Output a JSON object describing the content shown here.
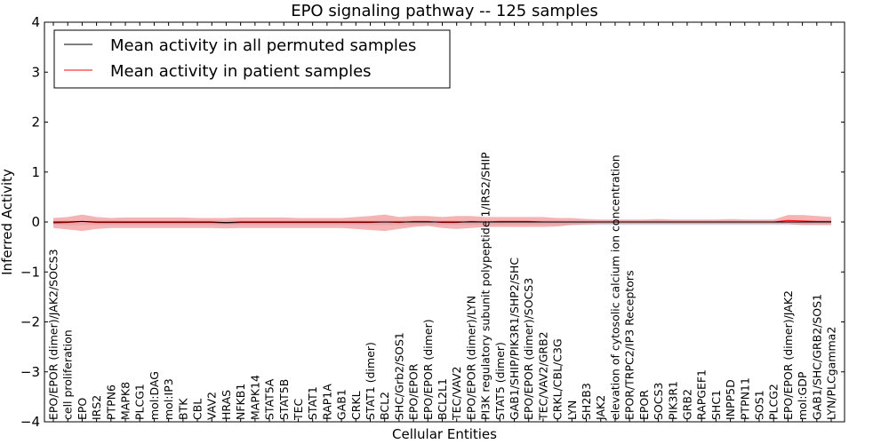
{
  "chart_data": {
    "type": "line",
    "title": "EPO signaling pathway -- 125 samples",
    "xlabel": "Cellular Entities",
    "ylabel": "Inferred Activity",
    "ylim": [
      -4,
      4
    ],
    "yticks": [
      4,
      3,
      2,
      1,
      0,
      -1,
      -2,
      -3,
      -4
    ],
    "ytick_labels": [
      "4",
      "3",
      "2",
      "1",
      "0",
      "−1",
      "−2",
      "−3",
      "−4"
    ],
    "legend_position": "top-left",
    "categories": [
      "EPO/EPOR (dimer)/JAK2/SOCS3",
      "cell proliferation",
      "EPO",
      "IRS2",
      "PTPN6",
      "MAPK8",
      "PLCG1",
      "mol:DAG",
      "mol:IP3",
      "BTK",
      "CBL",
      "VAV2",
      "HRAS",
      "NFKB1",
      "MAPK14",
      "STAT5A",
      "STAT5B",
      "TEC",
      "STAT1",
      "RAP1A",
      "GAB1",
      "CRKL",
      "STAT1 (dimer)",
      "BCL2",
      "SHC/Grb2/SOS1",
      "EPO/EPOR",
      "EPO/EPOR (dimer)",
      "BCL2L1",
      "TEC/VAV2",
      "EPO/EPOR (dimer)/LYN",
      "PI3K regulatory subunit polypeptide 1/IRS2/SHIP",
      "STAT5 (dimer)",
      "GAB1/SHIP/PIK3R1/SHP2/SHC",
      "EPO/EPOR (dimer)/SOCS3",
      "TEC/VAV2/GRB2",
      "CRKL/CBL/C3G",
      "LYN",
      "SH2B3",
      "JAK2",
      "elevation of cytosolic calcium ion concentration",
      "EPOR/TRPC2/IP3 Receptors",
      "EPOR",
      "SOCS3",
      "PIK3R1",
      "GRB2",
      "RAPGEF1",
      "SHC1",
      "INPP5D",
      "PTPN11",
      "SOS1",
      "PLCG2",
      "EPO/EPOR (dimer)/JAK2",
      "mol:GDP",
      "GAB1/SHC/GRB2/SOS1",
      "LYN/PLCgamma2"
    ],
    "series": [
      {
        "name": "Mean activity in all permuted samples",
        "color": "#000000",
        "values": [
          0,
          0,
          0.01,
          0,
          0,
          0,
          0,
          0,
          0,
          0,
          0,
          0,
          -0.01,
          0,
          0,
          0,
          0,
          0,
          0,
          0,
          0,
          0,
          0,
          0,
          0,
          0,
          0,
          0,
          0,
          0,
          0,
          0,
          0,
          0,
          0,
          0,
          0,
          0,
          0,
          0,
          0,
          0,
          0,
          0,
          0,
          0,
          0,
          0,
          0,
          0,
          0,
          0,
          0,
          0,
          0
        ],
        "band_upper": [
          0.02,
          0.03,
          0.03,
          0.03,
          0.03,
          0.03,
          0.03,
          0.03,
          0.03,
          0.03,
          0.03,
          0.03,
          0.03,
          0.03,
          0.03,
          0.03,
          0.03,
          0.03,
          0.03,
          0.03,
          0.03,
          0.03,
          0.03,
          0.03,
          0.03,
          0.03,
          0.03,
          0.03,
          0.03,
          0.03,
          0.03,
          0.03,
          0.03,
          0.03,
          0.03,
          0.03,
          0.03,
          0.03,
          0.03,
          0.03,
          0.03,
          0.03,
          0.03,
          0.03,
          0.03,
          0.03,
          0.03,
          0.03,
          0.03,
          0.03,
          0.03,
          0.03,
          0.03,
          0.03,
          0.03
        ],
        "band_lower": [
          -0.05,
          -0.07,
          -0.06,
          -0.06,
          -0.06,
          -0.06,
          -0.06,
          -0.06,
          -0.06,
          -0.06,
          -0.06,
          -0.06,
          -0.06,
          -0.06,
          -0.06,
          -0.06,
          -0.06,
          -0.06,
          -0.06,
          -0.06,
          -0.06,
          -0.06,
          -0.06,
          -0.06,
          -0.06,
          -0.06,
          -0.06,
          -0.06,
          -0.06,
          -0.06,
          -0.06,
          -0.06,
          -0.06,
          -0.06,
          -0.06,
          -0.06,
          -0.06,
          -0.06,
          -0.06,
          -0.06,
          -0.06,
          -0.06,
          -0.06,
          -0.06,
          -0.06,
          -0.06,
          -0.06,
          -0.06,
          -0.06,
          -0.06,
          -0.06,
          -0.06,
          -0.06,
          -0.06,
          -0.06
        ]
      },
      {
        "name": "Mean activity in patient samples",
        "color": "#ff0000",
        "values": [
          -0.02,
          -0.01,
          0.01,
          -0.01,
          -0.01,
          -0.01,
          -0.01,
          -0.01,
          -0.01,
          -0.01,
          -0.01,
          -0.01,
          -0.02,
          -0.01,
          -0.01,
          -0.01,
          -0.01,
          -0.01,
          -0.01,
          -0.01,
          -0.01,
          -0.01,
          -0.01,
          0.0,
          -0.01,
          0.01,
          0.01,
          -0.01,
          -0.01,
          0.01,
          0.0,
          0.01,
          0.01,
          0.01,
          0.0,
          0.0,
          0.0,
          0.0,
          0.0,
          0.0,
          0.0,
          0.0,
          0.0,
          0.0,
          0.0,
          0.0,
          0.0,
          0.0,
          0.0,
          0.0,
          0.0,
          0.03,
          0.02,
          0.01,
          0.01
        ],
        "band_upper": [
          0.08,
          0.1,
          0.15,
          0.1,
          0.08,
          0.09,
          0.09,
          0.09,
          0.09,
          0.09,
          0.08,
          0.08,
          0.08,
          0.09,
          0.09,
          0.09,
          0.09,
          0.08,
          0.08,
          0.08,
          0.08,
          0.1,
          0.12,
          0.15,
          0.1,
          0.12,
          0.12,
          0.1,
          0.12,
          0.12,
          0.1,
          0.1,
          0.1,
          0.1,
          0.1,
          0.08,
          0.08,
          0.06,
          0.05,
          0.05,
          0.05,
          0.05,
          0.06,
          0.05,
          0.05,
          0.05,
          0.05,
          0.06,
          0.05,
          0.05,
          0.05,
          0.14,
          0.14,
          0.12,
          0.1
        ],
        "band_lower": [
          -0.12,
          -0.15,
          -0.18,
          -0.14,
          -0.12,
          -0.12,
          -0.12,
          -0.12,
          -0.12,
          -0.12,
          -0.12,
          -0.12,
          -0.13,
          -0.12,
          -0.12,
          -0.12,
          -0.12,
          -0.12,
          -0.12,
          -0.12,
          -0.12,
          -0.14,
          -0.16,
          -0.18,
          -0.14,
          -0.1,
          -0.08,
          -0.12,
          -0.14,
          -0.12,
          -0.1,
          -0.1,
          -0.1,
          -0.1,
          -0.1,
          -0.09,
          -0.06,
          -0.05,
          -0.04,
          -0.04,
          -0.04,
          -0.04,
          -0.04,
          -0.04,
          -0.04,
          -0.04,
          -0.04,
          -0.04,
          -0.04,
          -0.04,
          -0.04,
          -0.04,
          -0.06,
          -0.06,
          -0.06
        ]
      }
    ]
  }
}
